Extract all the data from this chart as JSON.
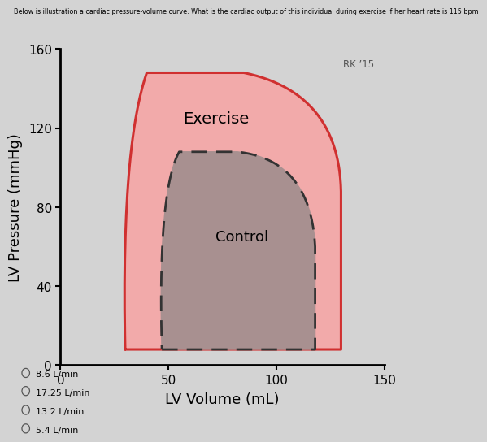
{
  "title_text": "Below is illustration a cardiac pressure-volume curve. What is the cardiac output of this individual during exercise if her heart rate is 115 bpm",
  "xlabel": "LV Volume (mL)",
  "ylabel": "LV Pressure (mmHg)",
  "xlim": [
    0,
    150
  ],
  "ylim": [
    0,
    160
  ],
  "xticks": [
    0,
    50,
    100,
    150
  ],
  "yticks": [
    0,
    40,
    80,
    120,
    160
  ],
  "watermark": "RK ’15",
  "exercise_label": "Exercise",
  "control_label": "Control",
  "exercise_fill": "#F2AAAA",
  "exercise_stroke": "#D03030",
  "control_fill": "#A89090",
  "control_stroke": "#333333",
  "bg_color": "#D3D3D3",
  "plot_bg": "#D3D3D3",
  "answer_options": [
    "8.6 L/min",
    "17.25 L/min",
    "13.2 L/min",
    "5.4 L/min"
  ]
}
